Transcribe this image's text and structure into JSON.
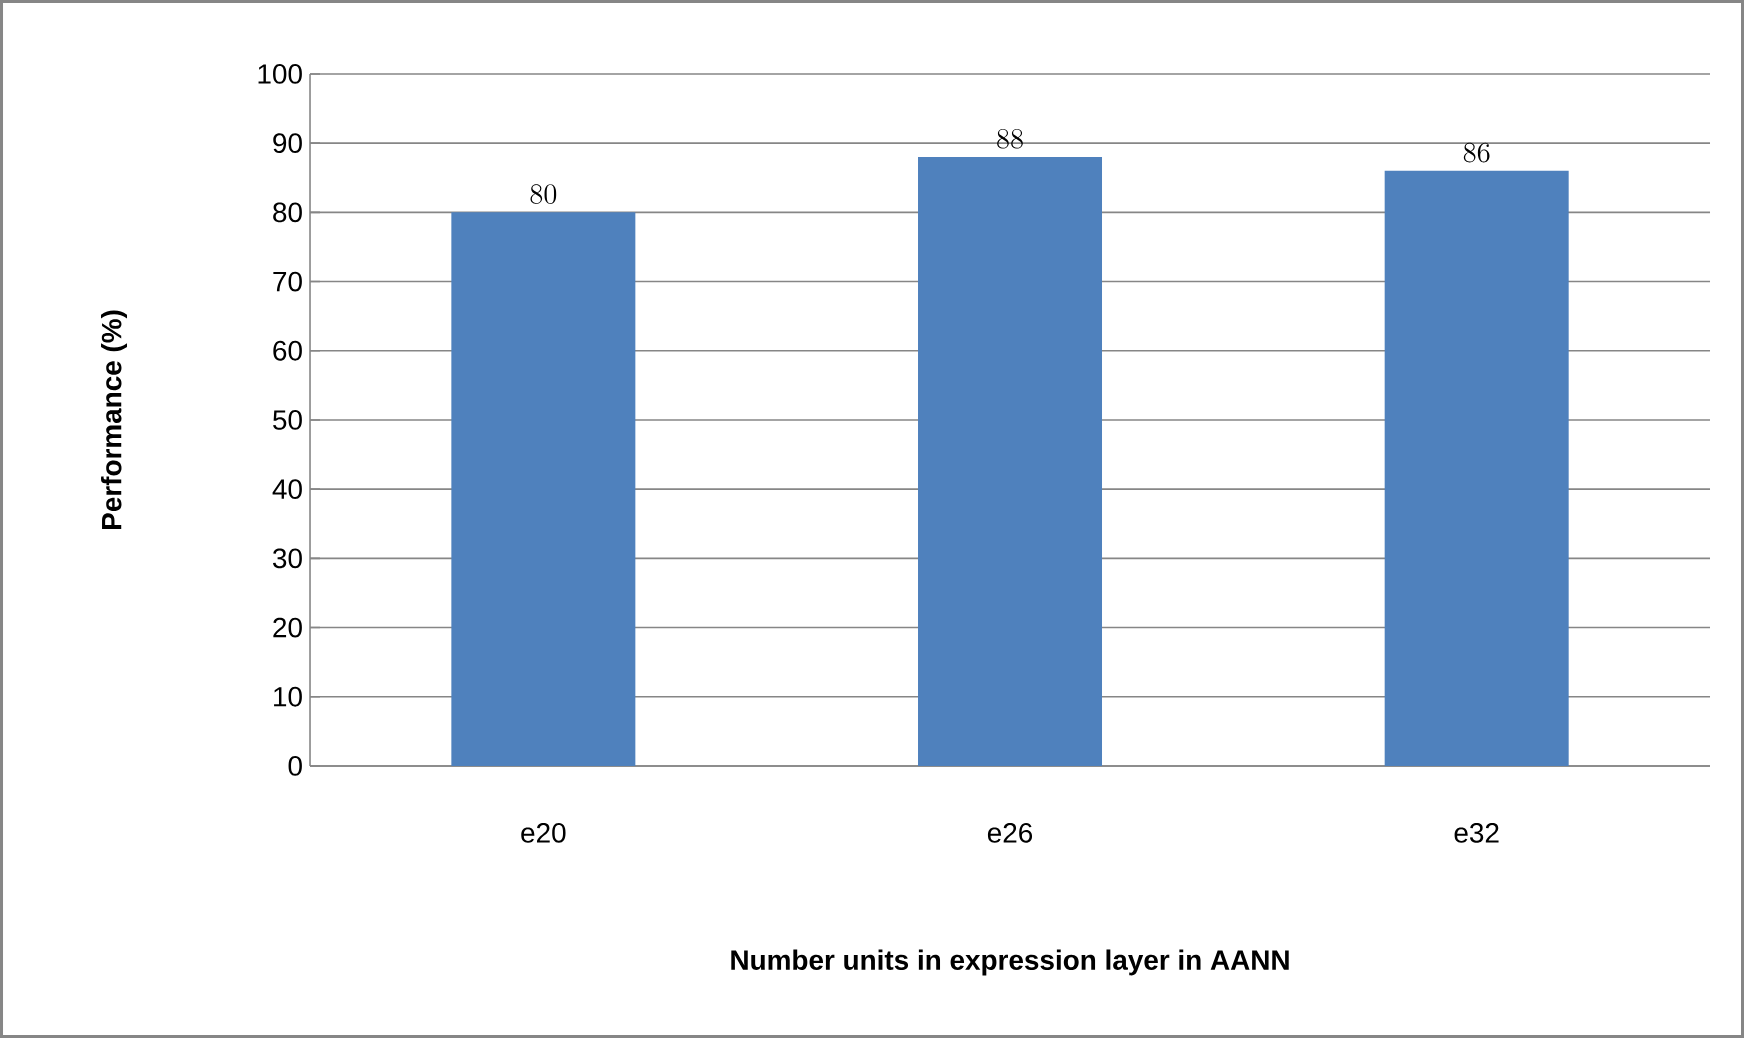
{
  "chart_data": {
    "type": "bar",
    "xlabel": "Number units in expression layer in AANN",
    "ylabel": "Performance (%)",
    "categories": [
      "e20",
      "e26",
      "e32"
    ],
    "values": [
      80,
      88,
      86
    ],
    "color": "#4f81bd",
    "ylim": [
      0,
      100
    ],
    "yticks": [
      0,
      10,
      20,
      30,
      40,
      50,
      60,
      70,
      80,
      90,
      100
    ],
    "grid": "y",
    "data_labels": true
  }
}
